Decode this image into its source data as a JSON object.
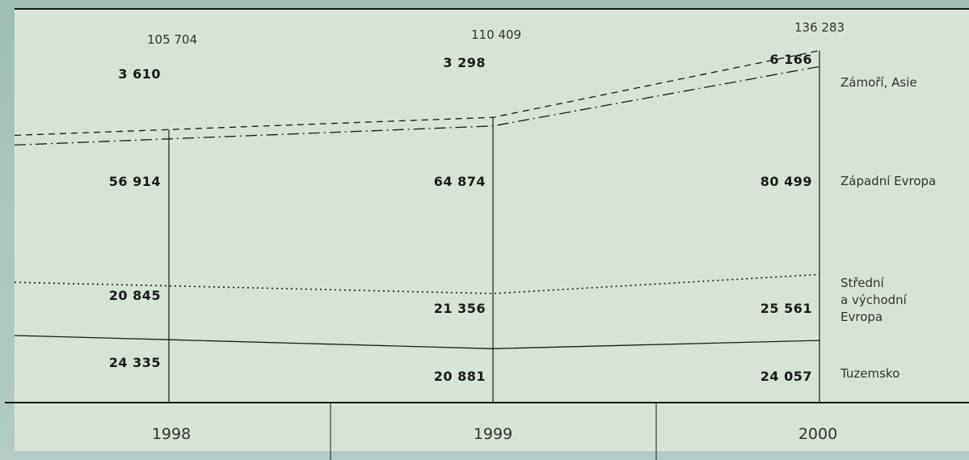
{
  "chart_data": {
    "type": "area",
    "title": "",
    "categories": [
      "1998",
      "1999",
      "2000"
    ],
    "totals": [
      "105 704",
      "110 409",
      "136 283"
    ],
    "series": [
      {
        "name": "Tuzemsko",
        "values": [
          24335,
          20881,
          24057
        ],
        "labels": [
          "24 335",
          "20 881",
          "24 057"
        ],
        "line_style": "none"
      },
      {
        "name": "Střední a východní Evropa",
        "values": [
          20845,
          21356,
          25561
        ],
        "labels": [
          "20 845",
          "21 356",
          "25 561"
        ],
        "line_style": "solid"
      },
      {
        "name": "Západní Evropa",
        "values": [
          56914,
          64874,
          80499
        ],
        "labels": [
          "56 914",
          "64 874",
          "80 499"
        ],
        "line_style": "dotted"
      },
      {
        "name": "Zámoří, Asie",
        "values": [
          3610,
          3298,
          6166
        ],
        "labels": [
          "3 610",
          "3 298",
          "6 166"
        ],
        "line_style": "dash-dot"
      }
    ],
    "total_line_style": "dashed",
    "region_labels": {
      "r0": "Tuzemsko",
      "r1": [
        "Střední",
        "a východní",
        "Evropa"
      ],
      "r2": "Západní Evropa",
      "r3": "Zámoří, Asie"
    },
    "colors": {
      "panel": "#d8e3d8",
      "line": "#1a1a1a",
      "outer": "#a9c5bd"
    }
  }
}
